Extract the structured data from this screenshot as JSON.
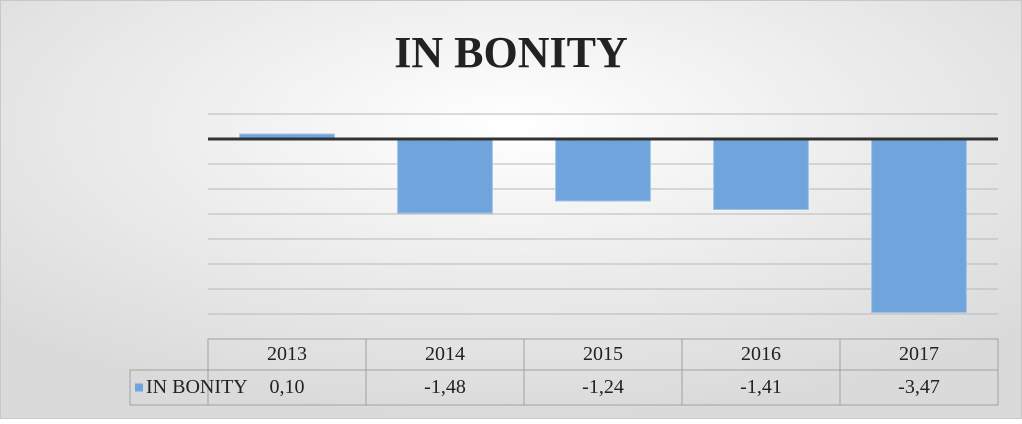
{
  "chart_data": {
    "type": "bar",
    "title": "IN BONITY",
    "categories": [
      "2013",
      "2014",
      "2015",
      "2016",
      "2017"
    ],
    "series": [
      {
        "name": "IN BONITY",
        "color": "#6fa4dc",
        "values": [
          0.1,
          -1.48,
          -1.24,
          -1.41,
          -3.47
        ],
        "value_labels": [
          "0,10",
          "-1,48",
          "-1,24",
          "-1,41",
          "-3,47"
        ]
      }
    ],
    "ylim": [
      -4,
      0.5
    ],
    "yticks": [
      0.5,
      0,
      -0.5,
      -1,
      -1.5,
      -2,
      -2.5,
      -3,
      -3.5,
      -4
    ],
    "grid": true,
    "data_table": true
  }
}
